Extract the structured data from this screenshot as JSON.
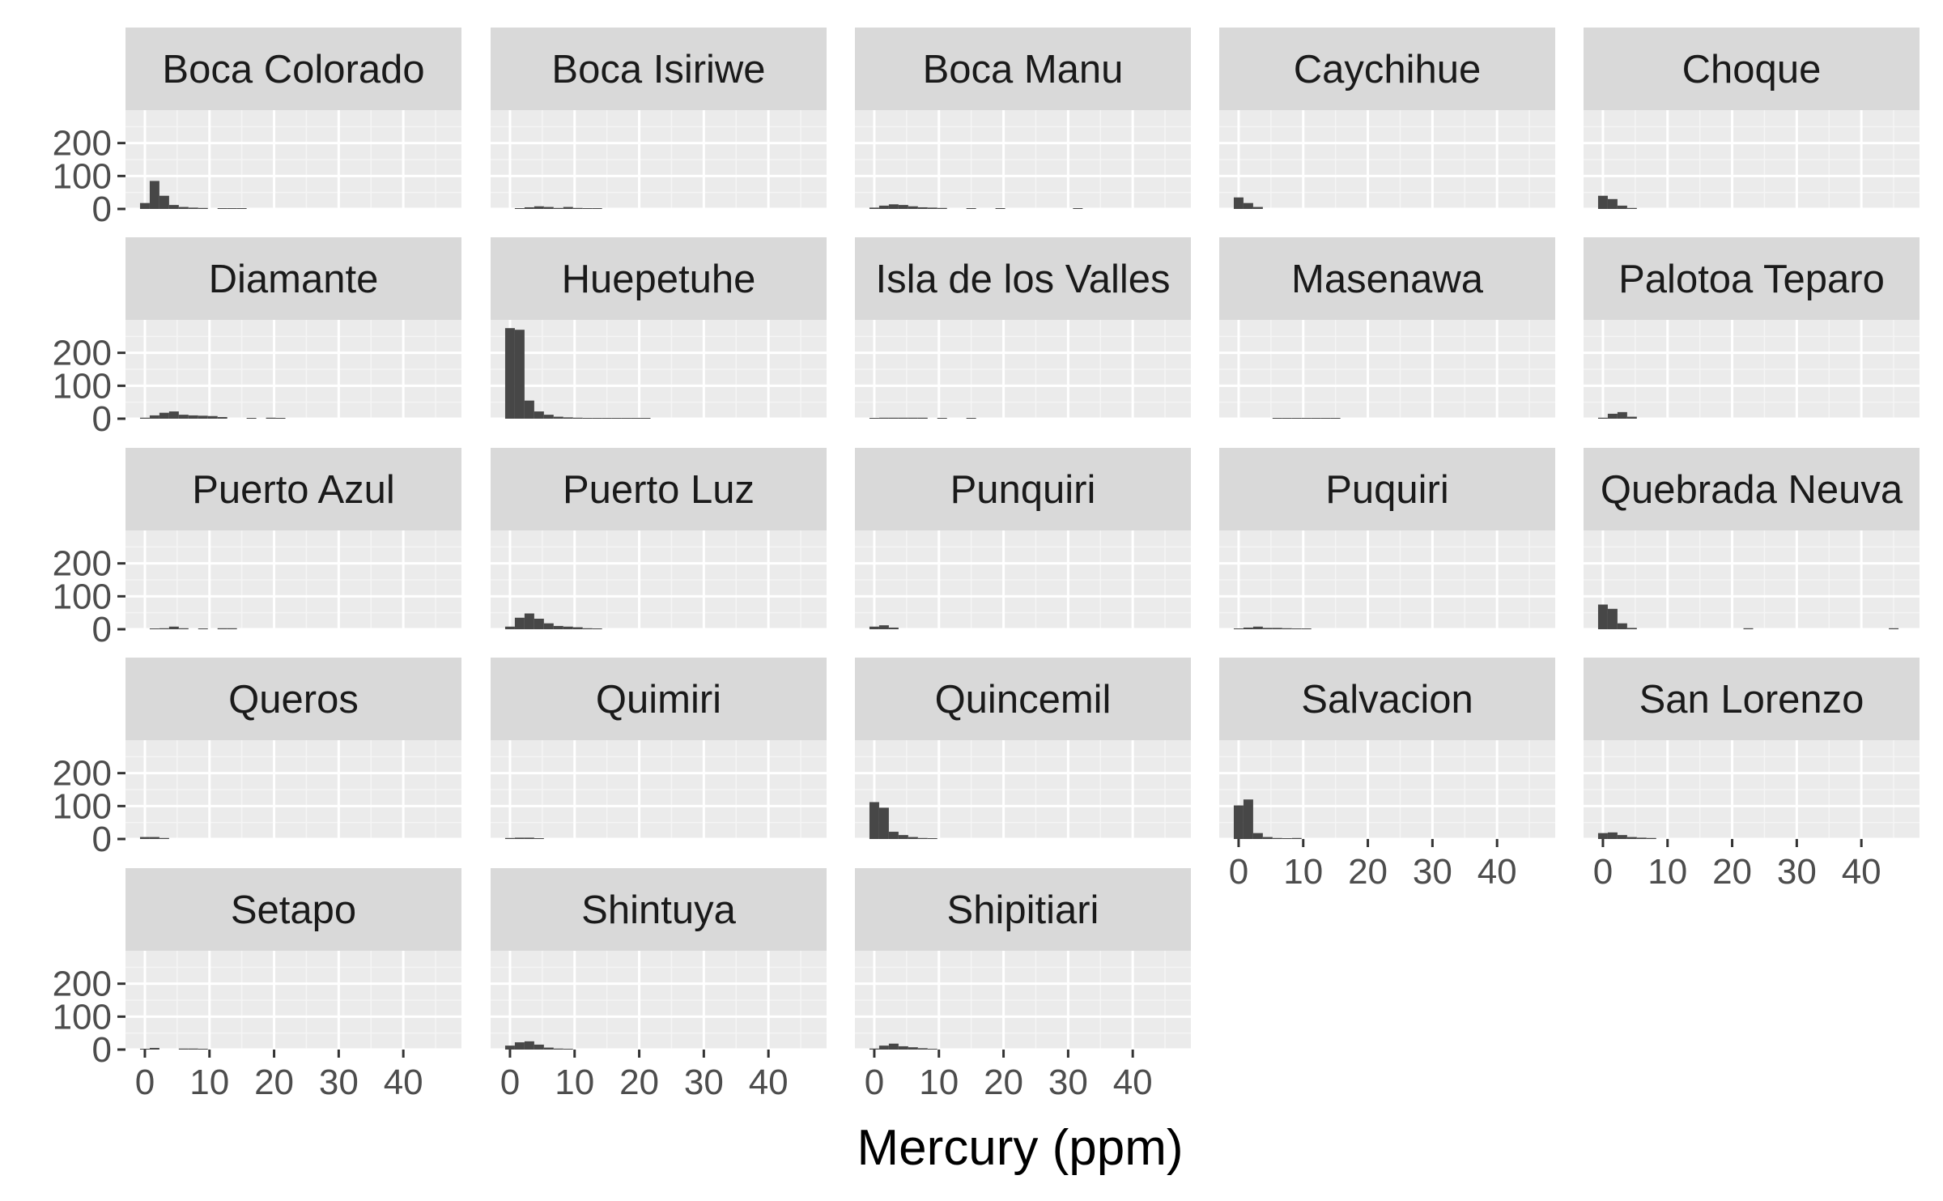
{
  "chart_data": {
    "type": "bar",
    "subtype": "faceted-histogram",
    "title": "",
    "xlabel": "Mercury (ppm)",
    "ylabel": "",
    "xlim": [
      -3,
      49
    ],
    "ylim": [
      0,
      300
    ],
    "x_ticks": [
      0,
      10,
      20,
      30,
      40
    ],
    "y_ticks": [
      0,
      100,
      200
    ],
    "bin_width": 1.5,
    "grid": true,
    "legend": "none",
    "colors": {
      "bar": "#474747",
      "panel_bg": "#ebebeb",
      "strip_bg": "#d9d9d9",
      "grid_major": "#ffffff",
      "grid_minor": "#f5f5f5",
      "tick": "#333333"
    },
    "facets": [
      {
        "name": "Boca Colorado",
        "bins": [
          [
            0,
            18
          ],
          [
            1.5,
            85
          ],
          [
            3,
            40
          ],
          [
            4.5,
            12
          ],
          [
            6,
            6
          ],
          [
            7.5,
            4
          ],
          [
            9,
            3
          ],
          [
            12,
            2
          ],
          [
            13.5,
            2
          ],
          [
            15,
            2
          ]
        ]
      },
      {
        "name": "Boca Isiriwe",
        "bins": [
          [
            1.5,
            2
          ],
          [
            3,
            5
          ],
          [
            4.5,
            8
          ],
          [
            6,
            6
          ],
          [
            7.5,
            3
          ],
          [
            9,
            6
          ],
          [
            10.5,
            3
          ],
          [
            12,
            2
          ],
          [
            13.5,
            2
          ]
        ]
      },
      {
        "name": "Boca Manu",
        "bins": [
          [
            0,
            4
          ],
          [
            1.5,
            10
          ],
          [
            3,
            14
          ],
          [
            4.5,
            12
          ],
          [
            6,
            8
          ],
          [
            7.5,
            5
          ],
          [
            9,
            4
          ],
          [
            10.5,
            3
          ],
          [
            15,
            2
          ],
          [
            19.5,
            2
          ],
          [
            31.5,
            2
          ]
        ]
      },
      {
        "name": "Caychihue",
        "bins": [
          [
            0,
            35
          ],
          [
            1.5,
            18
          ],
          [
            3,
            6
          ]
        ]
      },
      {
        "name": "Choque",
        "bins": [
          [
            0,
            40
          ],
          [
            1.5,
            30
          ],
          [
            3,
            10
          ],
          [
            4.5,
            3
          ]
        ]
      },
      {
        "name": "Diamante",
        "bins": [
          [
            0,
            3
          ],
          [
            1.5,
            10
          ],
          [
            3,
            18
          ],
          [
            4.5,
            22
          ],
          [
            6,
            12
          ],
          [
            7.5,
            10
          ],
          [
            9,
            9
          ],
          [
            10.5,
            8
          ],
          [
            12,
            5
          ],
          [
            16.5,
            2
          ],
          [
            19.5,
            3
          ],
          [
            21,
            2
          ]
        ]
      },
      {
        "name": "Huepetuhe",
        "bins": [
          [
            0,
            275
          ],
          [
            1.5,
            270
          ],
          [
            3,
            55
          ],
          [
            4.5,
            22
          ],
          [
            6,
            12
          ],
          [
            7.5,
            6
          ],
          [
            9,
            4
          ],
          [
            10.5,
            3
          ],
          [
            12,
            2
          ],
          [
            13.5,
            2
          ],
          [
            15,
            2
          ],
          [
            16.5,
            2
          ],
          [
            18,
            1
          ],
          [
            19.5,
            1
          ],
          [
            21,
            1
          ]
        ]
      },
      {
        "name": "Isla de los Valles",
        "bins": [
          [
            0,
            2
          ],
          [
            1.5,
            3
          ],
          [
            3,
            3
          ],
          [
            4.5,
            3
          ],
          [
            6,
            3
          ],
          [
            7.5,
            3
          ],
          [
            10.5,
            2
          ],
          [
            15,
            2
          ]
        ]
      },
      {
        "name": "Masenawa",
        "bins": [
          [
            6,
            2
          ],
          [
            7.5,
            2
          ],
          [
            9,
            2
          ],
          [
            10.5,
            2
          ],
          [
            12,
            2
          ],
          [
            13.5,
            2
          ],
          [
            15,
            1
          ]
        ]
      },
      {
        "name": "Palotoa Teparo",
        "bins": [
          [
            0,
            3
          ],
          [
            1.5,
            15
          ],
          [
            3,
            20
          ],
          [
            4.5,
            6
          ]
        ]
      },
      {
        "name": "Puerto Azul",
        "bins": [
          [
            1.5,
            2
          ],
          [
            3,
            3
          ],
          [
            4.5,
            8
          ],
          [
            6,
            3
          ],
          [
            9,
            2
          ],
          [
            12,
            3
          ],
          [
            13.5,
            3
          ]
        ]
      },
      {
        "name": "Puerto Luz",
        "bins": [
          [
            0,
            8
          ],
          [
            1.5,
            35
          ],
          [
            3,
            48
          ],
          [
            4.5,
            32
          ],
          [
            6,
            18
          ],
          [
            7.5,
            10
          ],
          [
            9,
            8
          ],
          [
            10.5,
            6
          ],
          [
            12,
            3
          ],
          [
            13.5,
            2
          ]
        ]
      },
      {
        "name": "Punquiri",
        "bins": [
          [
            0,
            8
          ],
          [
            1.5,
            12
          ],
          [
            3,
            5
          ]
        ]
      },
      {
        "name": "Puquiri",
        "bins": [
          [
            0,
            2
          ],
          [
            1.5,
            5
          ],
          [
            3,
            8
          ],
          [
            4.5,
            4
          ],
          [
            6,
            4
          ],
          [
            7.5,
            3
          ],
          [
            9,
            2
          ],
          [
            10.5,
            2
          ]
        ]
      },
      {
        "name": "Quebrada Neuva",
        "bins": [
          [
            0,
            75
          ],
          [
            1.5,
            62
          ],
          [
            3,
            18
          ],
          [
            4.5,
            4
          ],
          [
            22.5,
            3
          ],
          [
            45,
            3
          ]
        ]
      },
      {
        "name": "Queros",
        "bins": [
          [
            0,
            6
          ],
          [
            1.5,
            6
          ],
          [
            3,
            3
          ]
        ]
      },
      {
        "name": "Quimiri",
        "bins": [
          [
            0,
            3
          ],
          [
            1.5,
            4
          ],
          [
            3,
            4
          ],
          [
            4.5,
            2
          ]
        ]
      },
      {
        "name": "Quincemil",
        "bins": [
          [
            0,
            112
          ],
          [
            1.5,
            95
          ],
          [
            3,
            22
          ],
          [
            4.5,
            12
          ],
          [
            6,
            6
          ],
          [
            7.5,
            3
          ],
          [
            9,
            2
          ]
        ]
      },
      {
        "name": "Salvacion",
        "bins": [
          [
            0,
            102
          ],
          [
            1.5,
            120
          ],
          [
            3,
            18
          ],
          [
            4.5,
            6
          ],
          [
            6,
            3
          ],
          [
            7.5,
            2
          ],
          [
            9,
            3
          ]
        ]
      },
      {
        "name": "San Lorenzo",
        "bins": [
          [
            0,
            18
          ],
          [
            1.5,
            20
          ],
          [
            3,
            12
          ],
          [
            4.5,
            6
          ],
          [
            6,
            4
          ],
          [
            7.5,
            3
          ]
        ]
      },
      {
        "name": "Setapo",
        "bins": [
          [
            0,
            2
          ],
          [
            1.5,
            5
          ],
          [
            6,
            3
          ],
          [
            7.5,
            3
          ],
          [
            9,
            2
          ]
        ]
      },
      {
        "name": "Shintuya",
        "bins": [
          [
            0,
            12
          ],
          [
            1.5,
            22
          ],
          [
            3,
            25
          ],
          [
            4.5,
            15
          ],
          [
            6,
            6
          ],
          [
            7.5,
            3
          ],
          [
            9,
            2
          ]
        ]
      },
      {
        "name": "Shipitiari",
        "bins": [
          [
            0,
            3
          ],
          [
            1.5,
            12
          ],
          [
            3,
            18
          ],
          [
            4.5,
            10
          ],
          [
            6,
            7
          ],
          [
            7.5,
            4
          ],
          [
            9,
            2
          ]
        ]
      }
    ]
  }
}
